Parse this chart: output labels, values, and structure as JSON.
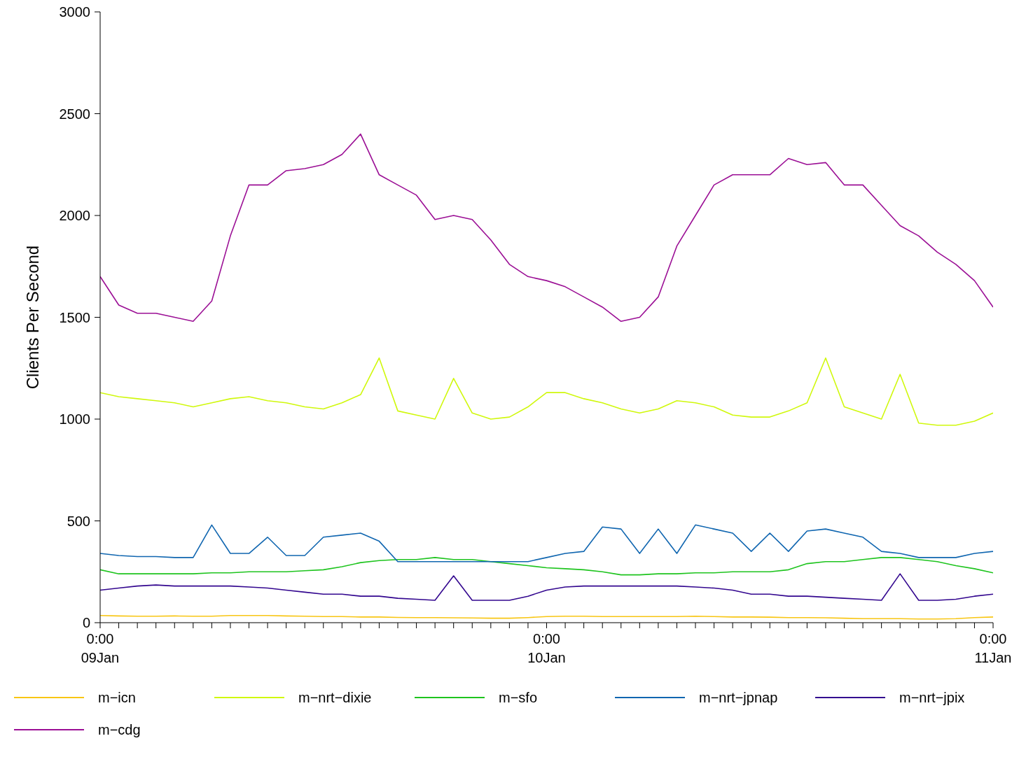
{
  "chart_data": {
    "type": "line",
    "ylabel": "Clients Per Second",
    "categories": [
      "0:00 09Jan",
      null,
      null,
      null,
      null,
      null,
      null,
      null,
      null,
      null,
      null,
      null,
      null,
      null,
      null,
      null,
      null,
      null,
      null,
      null,
      null,
      null,
      null,
      null,
      "0:00 10Jan",
      null,
      null,
      null,
      null,
      null,
      null,
      null,
      null,
      null,
      null,
      null,
      null,
      null,
      null,
      null,
      null,
      null,
      null,
      null,
      null,
      null,
      null,
      null,
      "0:00 11Jan"
    ],
    "ylim": [
      0,
      3000
    ],
    "yticks": [
      0,
      500,
      1000,
      1500,
      2000,
      2500,
      3000
    ],
    "grid": false,
    "legend": "bottom",
    "marker": "none",
    "line_style": "solid",
    "series": [
      {
        "name": "m−icn",
        "color": "#f8c614",
        "values": [
          35,
          33,
          32,
          32,
          33,
          32,
          32,
          35,
          35,
          35,
          33,
          32,
          30,
          30,
          28,
          28,
          26,
          25,
          25,
          24,
          23,
          22,
          22,
          25,
          30,
          32,
          32,
          30,
          30,
          30,
          30,
          30,
          32,
          30,
          28,
          28,
          27,
          25,
          25,
          24,
          22,
          20,
          20,
          20,
          18,
          18,
          20,
          25,
          28
        ]
      },
      {
        "name": "m−nrt−dixie",
        "color": "#d0f80c",
        "values": [
          1130,
          1110,
          1100,
          1090,
          1080,
          1060,
          1080,
          1100,
          1110,
          1090,
          1080,
          1060,
          1050,
          1080,
          1120,
          1300,
          1040,
          1020,
          1000,
          1200,
          1030,
          1000,
          1010,
          1060,
          1130,
          1130,
          1100,
          1080,
          1050,
          1030,
          1050,
          1090,
          1080,
          1060,
          1020,
          1010,
          1010,
          1040,
          1080,
          1300,
          1060,
          1030,
          1000,
          1220,
          980,
          970,
          970,
          990,
          1030
        ]
      },
      {
        "name": "m−sfo",
        "color": "#1ec41e",
        "values": [
          260,
          240,
          240,
          240,
          240,
          240,
          245,
          245,
          250,
          250,
          250,
          255,
          260,
          275,
          295,
          305,
          310,
          310,
          320,
          310,
          310,
          300,
          290,
          280,
          270,
          265,
          260,
          250,
          235,
          235,
          240,
          240,
          245,
          245,
          250,
          250,
          250,
          260,
          290,
          300,
          300,
          310,
          320,
          320,
          310,
          300,
          280,
          265,
          245
        ]
      },
      {
        "name": "m−nrt−jpnap",
        "color": "#1066b0",
        "values": [
          340,
          330,
          325,
          325,
          320,
          320,
          480,
          340,
          340,
          420,
          330,
          330,
          420,
          430,
          440,
          400,
          300,
          300,
          300,
          300,
          300,
          300,
          300,
          300,
          320,
          340,
          350,
          470,
          460,
          340,
          460,
          340,
          480,
          460,
          440,
          350,
          440,
          350,
          450,
          460,
          440,
          420,
          350,
          340,
          320,
          320,
          320,
          340,
          350
        ]
      },
      {
        "name": "m−nrt−jpix",
        "color": "#33078f",
        "values": [
          160,
          170,
          180,
          185,
          180,
          180,
          180,
          180,
          175,
          170,
          160,
          150,
          140,
          140,
          130,
          130,
          120,
          115,
          110,
          230,
          110,
          110,
          110,
          130,
          160,
          175,
          180,
          180,
          180,
          180,
          180,
          180,
          175,
          170,
          160,
          140,
          140,
          130,
          130,
          125,
          120,
          115,
          110,
          240,
          110,
          110,
          115,
          130,
          140
        ]
      },
      {
        "name": "m−cdg",
        "color": "#9b0f95",
        "values": [
          1700,
          1560,
          1520,
          1520,
          1500,
          1480,
          1580,
          1900,
          2150,
          2150,
          2220,
          2230,
          2250,
          2300,
          2400,
          2200,
          2150,
          2100,
          1980,
          2000,
          1980,
          1880,
          1760,
          1700,
          1680,
          1650,
          1600,
          1550,
          1480,
          1500,
          1600,
          1850,
          2000,
          2150,
          2200,
          2200,
          2200,
          2280,
          2250,
          2260,
          2150,
          2150,
          2050,
          1950,
          1900,
          1820,
          1760,
          1680,
          1550
        ]
      }
    ]
  }
}
